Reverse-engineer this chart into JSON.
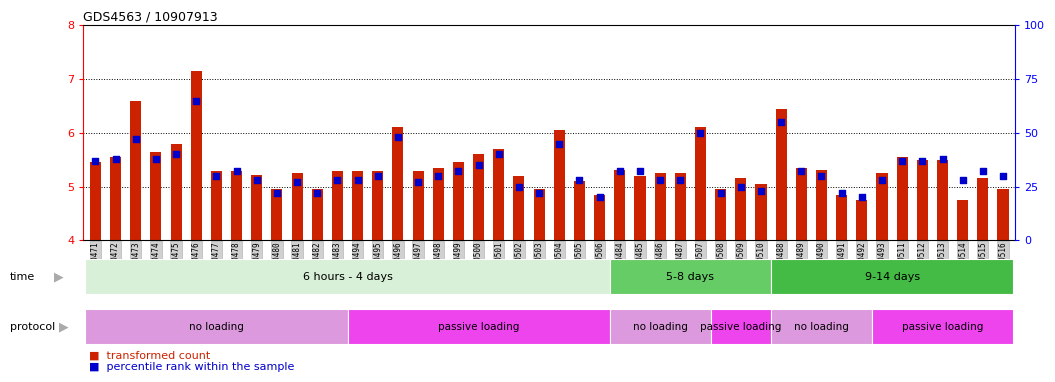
{
  "title": "GDS4563 / 10907913",
  "samples": [
    "GSM930471",
    "GSM930472",
    "GSM930473",
    "GSM930474",
    "GSM930475",
    "GSM930476",
    "GSM930477",
    "GSM930478",
    "GSM930479",
    "GSM930480",
    "GSM930481",
    "GSM930482",
    "GSM930483",
    "GSM930494",
    "GSM930495",
    "GSM930496",
    "GSM930497",
    "GSM930498",
    "GSM930499",
    "GSM930500",
    "GSM930501",
    "GSM930502",
    "GSM930503",
    "GSM930504",
    "GSM930505",
    "GSM930506",
    "GSM930484",
    "GSM930485",
    "GSM930486",
    "GSM930487",
    "GSM930507",
    "GSM930508",
    "GSM930509",
    "GSM930510",
    "GSM930488",
    "GSM930489",
    "GSM930490",
    "GSM930491",
    "GSM930492",
    "GSM930493",
    "GSM930511",
    "GSM930512",
    "GSM930513",
    "GSM930514",
    "GSM930515",
    "GSM930516"
  ],
  "red_values": [
    5.45,
    5.55,
    6.6,
    5.65,
    5.8,
    7.15,
    5.28,
    5.28,
    5.22,
    4.95,
    5.25,
    4.95,
    5.28,
    5.28,
    5.28,
    6.1,
    5.28,
    5.35,
    5.45,
    5.6,
    5.7,
    5.2,
    4.95,
    6.05,
    5.1,
    4.85,
    5.3,
    5.2,
    5.25,
    5.25,
    6.1,
    4.95,
    5.15,
    5.05,
    6.45,
    5.35,
    5.3,
    4.85,
    4.75,
    5.25,
    5.55,
    5.5,
    5.5,
    4.75,
    5.15,
    4.95
  ],
  "blue_values": [
    37,
    38,
    47,
    38,
    40,
    65,
    30,
    32,
    28,
    22,
    27,
    22,
    28,
    28,
    30,
    48,
    27,
    30,
    32,
    35,
    40,
    25,
    22,
    45,
    28,
    20,
    32,
    32,
    28,
    28,
    50,
    22,
    25,
    23,
    55,
    32,
    30,
    22,
    20,
    28,
    37,
    37,
    38,
    28,
    32,
    30
  ],
  "ylim_left": [
    4,
    8
  ],
  "ylim_right": [
    0,
    100
  ],
  "yticks_left": [
    4,
    5,
    6,
    7,
    8
  ],
  "yticks_right": [
    0,
    25,
    50,
    75,
    100
  ],
  "bar_color": "#CC2200",
  "dot_color": "#0000CC",
  "grid_color": "#000000",
  "bg_color": "#ffffff",
  "time_groups": [
    {
      "label": "6 hours - 4 days",
      "start": 0,
      "end": 25,
      "color": "#d8f0d8"
    },
    {
      "label": "5-8 days",
      "start": 26,
      "end": 33,
      "color": "#66cc66"
    },
    {
      "label": "9-14 days",
      "start": 34,
      "end": 45,
      "color": "#44bb44"
    }
  ],
  "protocol_groups": [
    {
      "label": "no loading",
      "start": 0,
      "end": 12,
      "color": "#dd99dd"
    },
    {
      "label": "passive loading",
      "start": 13,
      "end": 25,
      "color": "#ee44ee"
    },
    {
      "label": "no loading",
      "start": 26,
      "end": 30,
      "color": "#dd99dd"
    },
    {
      "label": "passive loading",
      "start": 31,
      "end": 33,
      "color": "#ee44ee"
    },
    {
      "label": "no loading",
      "start": 34,
      "end": 38,
      "color": "#dd99dd"
    },
    {
      "label": "passive loading",
      "start": 39,
      "end": 45,
      "color": "#ee44ee"
    }
  ],
  "legend_items": [
    {
      "label": "transformed count",
      "color": "#CC2200"
    },
    {
      "label": "percentile rank within the sample",
      "color": "#0000CC"
    }
  ]
}
